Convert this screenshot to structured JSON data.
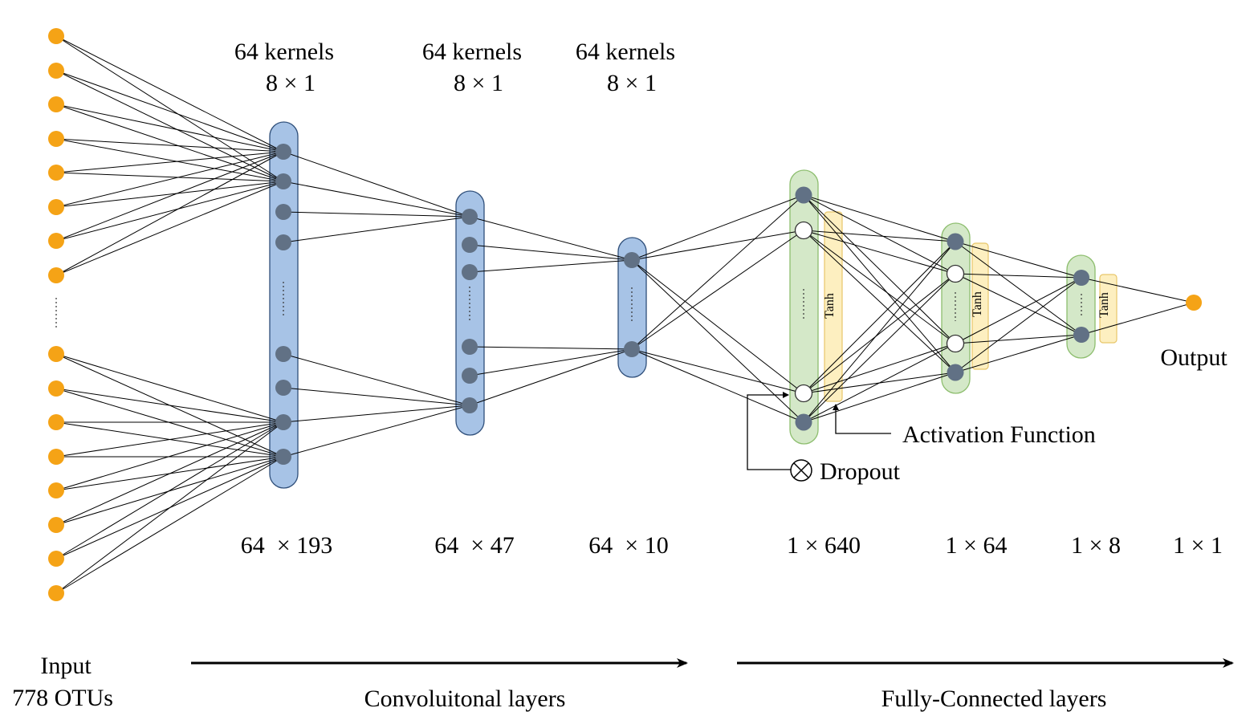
{
  "colors": {
    "input_node": "#F5A316",
    "conv_bar_fill": "#A7C3E6",
    "conv_bar_stroke": "#2F4F7A",
    "fc_bar_fill": "#D4E8C8",
    "fc_bar_stroke": "#8DBE6E",
    "tanh_fill": "#FDEFC0",
    "tanh_stroke": "#E8C66A",
    "node_gray": "#617185",
    "node_white": "#FFFFFF",
    "line": "#000000"
  },
  "top_labels": [
    {
      "line1": "64 kernels",
      "line2": "8 × 1"
    },
    {
      "line1": "64 kernels",
      "line2": "8 × 1"
    },
    {
      "line1": "64 kernels",
      "line2": "8 × 1"
    }
  ],
  "dims": [
    "64  × 193",
    "64  × 47",
    "64  × 10",
    "1 × 640",
    "1 × 64",
    "1 × 8",
    "1 × 1"
  ],
  "tanh_label": "Tanh",
  "output_label": "Output",
  "activation_label": "Activation Function",
  "dropout_label": "Dropout",
  "input_label": {
    "line1": "Input",
    "line2": "778 OTUs"
  },
  "conv_section_label": "Convoluitonal layers",
  "fc_section_label": "Fully-Connected layers",
  "icons": {
    "dropout": "circled-times-icon",
    "arrow": "arrow-right-icon"
  }
}
